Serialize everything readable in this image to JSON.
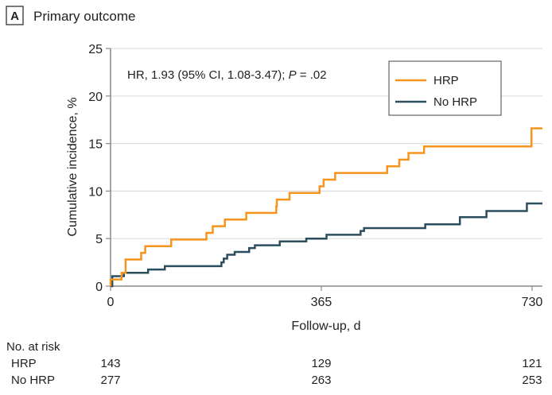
{
  "panel": {
    "letter": "A",
    "title": "Primary outcome"
  },
  "chart_data": {
    "type": "line",
    "step": true,
    "xlabel": "Follow-up, d",
    "ylabel": "Cumulative incidence, %",
    "xlim": [
      0,
      748
    ],
    "ylim": [
      0,
      25
    ],
    "xticks": [
      0,
      365,
      730
    ],
    "yticks": [
      0,
      5,
      10,
      15,
      20,
      25
    ],
    "grid": "horizontal",
    "legend_position": "top-right",
    "annotation": {
      "prefix": "HR, 1.93 (95% CI, 1.08-3.47); ",
      "p_label": "P",
      "suffix": " = .02"
    },
    "series": [
      {
        "name": "HRP",
        "color": "#F7941D",
        "x": [
          0,
          0,
          19,
          26,
          53,
          60,
          105,
          166,
          177,
          198,
          235,
          287,
          288,
          310,
          362,
          369,
          389,
          479,
          500,
          516,
          543,
          729,
          748
        ],
        "y": [
          0,
          0.7,
          1.4,
          2.8,
          3.5,
          4.2,
          4.9,
          5.6,
          6.3,
          7.0,
          7.7,
          8.4,
          9.1,
          9.8,
          10.5,
          11.2,
          11.9,
          12.6,
          13.3,
          14.0,
          14.7,
          16.6,
          16.6
        ]
      },
      {
        "name": "No HRP",
        "color": "#2B4E5E",
        "x": [
          0,
          3,
          23,
          65,
          94,
          192,
          196,
          202,
          215,
          240,
          250,
          293,
          339,
          374,
          433,
          439,
          545,
          605,
          651,
          721,
          748
        ],
        "y": [
          0,
          1.05,
          1.4,
          1.75,
          2.1,
          2.5,
          2.9,
          3.3,
          3.6,
          4.0,
          4.3,
          4.7,
          5.0,
          5.4,
          5.8,
          6.1,
          6.5,
          7.25,
          7.9,
          8.7,
          8.7
        ]
      }
    ],
    "risk_table": {
      "title": "No. at risk",
      "times": [
        0,
        365,
        730
      ],
      "rows": [
        {
          "label": "HRP",
          "values": [
            "143",
            "129",
            "121"
          ]
        },
        {
          "label": "No HRP",
          "values": [
            "277",
            "263",
            "253"
          ]
        }
      ]
    }
  }
}
